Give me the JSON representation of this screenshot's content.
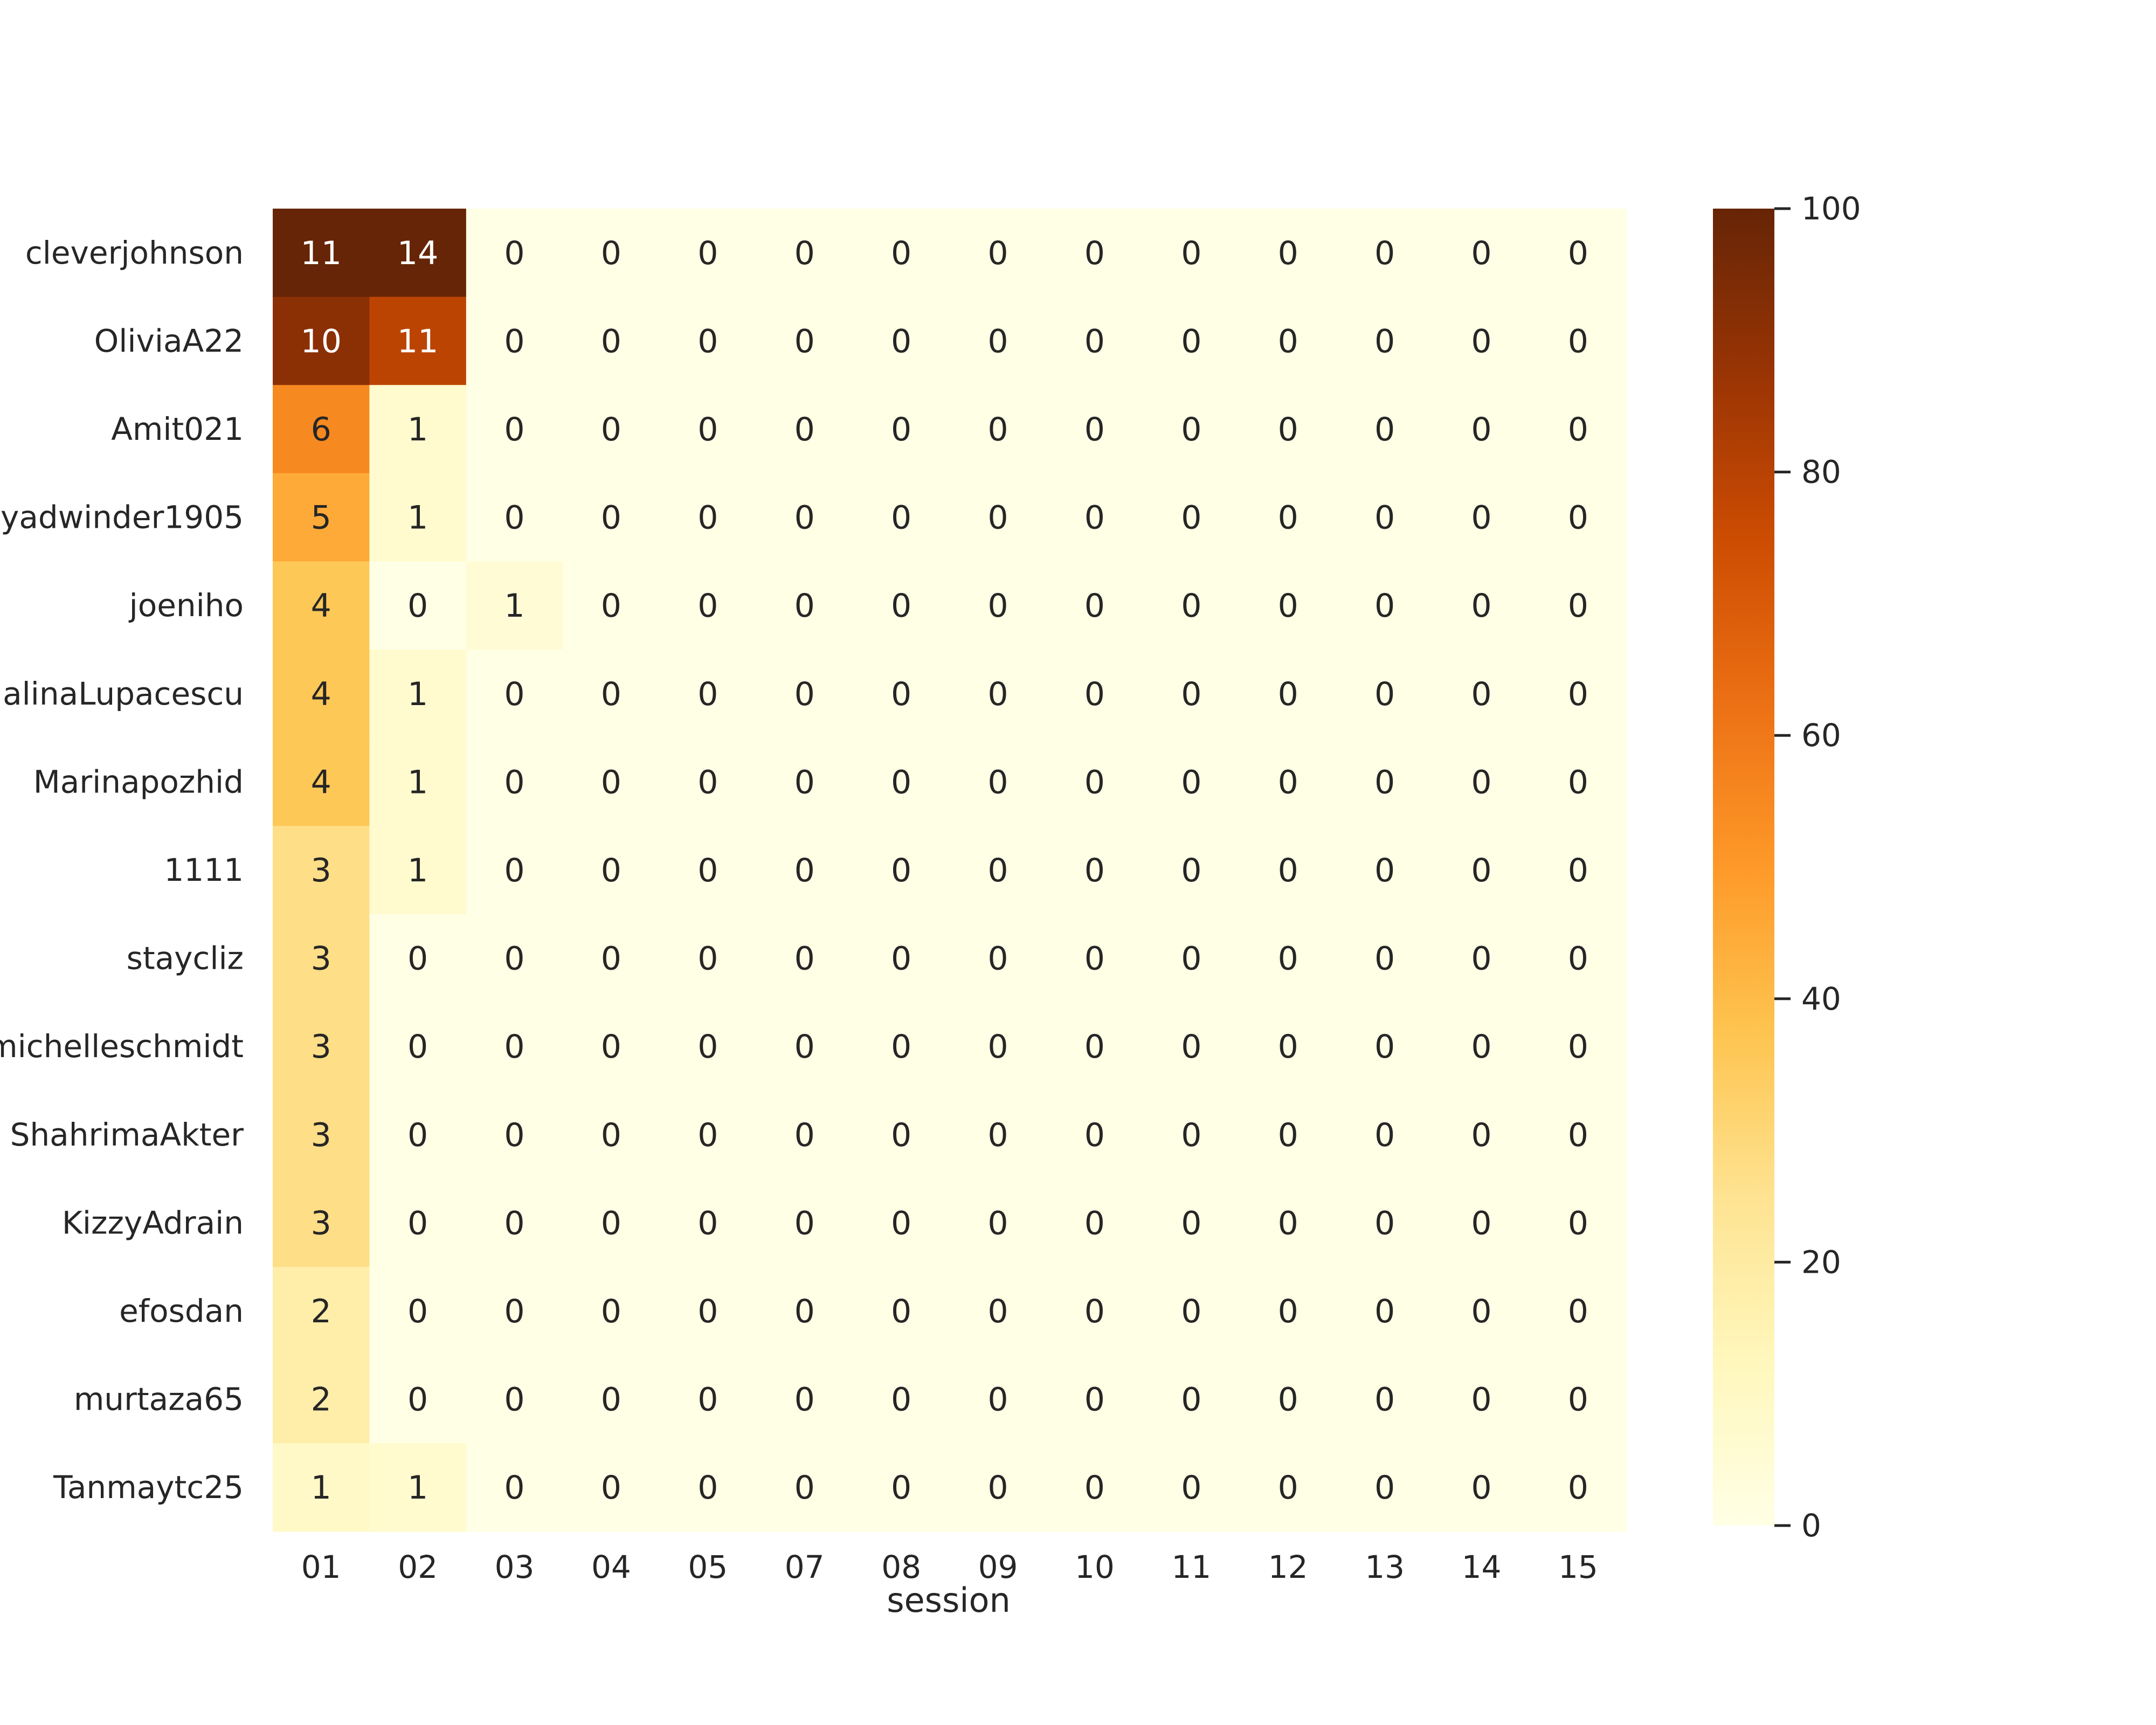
{
  "chart_data": {
    "type": "heatmap",
    "title": "",
    "xlabel": "session",
    "ylabel": "",
    "x": [
      "01",
      "02",
      "03",
      "04",
      "05",
      "07",
      "08",
      "09",
      "10",
      "11",
      "12",
      "13",
      "14",
      "15"
    ],
    "y": [
      "cleverjohnson",
      "OliviaA22",
      "Amit021",
      "yadwinder1905",
      "joeniho",
      "MagdalinaLupacescu",
      "Marinapozhid",
      "1111",
      "staycliz",
      "michelleschmidt",
      "ShahrimaAkter",
      "KizzyAdrain",
      "efosdan",
      "murtaza65",
      "Tanmaytc25"
    ],
    "annotations": [
      [
        11,
        14,
        0,
        0,
        0,
        0,
        0,
        0,
        0,
        0,
        0,
        0,
        0,
        0
      ],
      [
        10,
        11,
        0,
        0,
        0,
        0,
        0,
        0,
        0,
        0,
        0,
        0,
        0,
        0
      ],
      [
        6,
        1,
        0,
        0,
        0,
        0,
        0,
        0,
        0,
        0,
        0,
        0,
        0,
        0
      ],
      [
        5,
        1,
        0,
        0,
        0,
        0,
        0,
        0,
        0,
        0,
        0,
        0,
        0,
        0
      ],
      [
        4,
        0,
        1,
        0,
        0,
        0,
        0,
        0,
        0,
        0,
        0,
        0,
        0,
        0
      ],
      [
        4,
        1,
        0,
        0,
        0,
        0,
        0,
        0,
        0,
        0,
        0,
        0,
        0,
        0
      ],
      [
        4,
        1,
        0,
        0,
        0,
        0,
        0,
        0,
        0,
        0,
        0,
        0,
        0,
        0
      ],
      [
        3,
        1,
        0,
        0,
        0,
        0,
        0,
        0,
        0,
        0,
        0,
        0,
        0,
        0
      ],
      [
        3,
        0,
        0,
        0,
        0,
        0,
        0,
        0,
        0,
        0,
        0,
        0,
        0,
        0
      ],
      [
        3,
        0,
        0,
        0,
        0,
        0,
        0,
        0,
        0,
        0,
        0,
        0,
        0,
        0
      ],
      [
        3,
        0,
        0,
        0,
        0,
        0,
        0,
        0,
        0,
        0,
        0,
        0,
        0,
        0
      ],
      [
        3,
        0,
        0,
        0,
        0,
        0,
        0,
        0,
        0,
        0,
        0,
        0,
        0,
        0
      ],
      [
        2,
        0,
        0,
        0,
        0,
        0,
        0,
        0,
        0,
        0,
        0,
        0,
        0,
        0
      ],
      [
        2,
        0,
        0,
        0,
        0,
        0,
        0,
        0,
        0,
        0,
        0,
        0,
        0,
        0
      ],
      [
        1,
        1,
        0,
        0,
        0,
        0,
        0,
        0,
        0,
        0,
        0,
        0,
        0,
        0
      ]
    ],
    "color_values": [
      [
        100,
        100,
        0,
        0,
        0,
        0,
        0,
        0,
        0,
        0,
        0,
        0,
        0,
        0
      ],
      [
        91,
        79,
        0,
        0,
        0,
        0,
        0,
        0,
        0,
        0,
        0,
        0,
        0,
        0
      ],
      [
        55,
        7,
        0,
        0,
        0,
        0,
        0,
        0,
        0,
        0,
        0,
        0,
        0,
        0
      ],
      [
        45,
        7,
        0,
        0,
        0,
        0,
        0,
        0,
        0,
        0,
        0,
        0,
        0,
        0
      ],
      [
        36,
        0,
        5,
        0,
        0,
        0,
        0,
        0,
        0,
        0,
        0,
        0,
        0,
        0
      ],
      [
        36,
        7,
        0,
        0,
        0,
        0,
        0,
        0,
        0,
        0,
        0,
        0,
        0,
        0
      ],
      [
        36,
        7,
        0,
        0,
        0,
        0,
        0,
        0,
        0,
        0,
        0,
        0,
        0,
        0
      ],
      [
        27,
        7,
        0,
        0,
        0,
        0,
        0,
        0,
        0,
        0,
        0,
        0,
        0,
        0
      ],
      [
        27,
        0,
        0,
        0,
        0,
        0,
        0,
        0,
        0,
        0,
        0,
        0,
        0,
        0
      ],
      [
        27,
        0,
        0,
        0,
        0,
        0,
        0,
        0,
        0,
        0,
        0,
        0,
        0,
        0
      ],
      [
        27,
        0,
        0,
        0,
        0,
        0,
        0,
        0,
        0,
        0,
        0,
        0,
        0,
        0
      ],
      [
        27,
        0,
        0,
        0,
        0,
        0,
        0,
        0,
        0,
        0,
        0,
        0,
        0,
        0
      ],
      [
        18,
        0,
        0,
        0,
        0,
        0,
        0,
        0,
        0,
        0,
        0,
        0,
        0,
        0
      ],
      [
        18,
        0,
        0,
        0,
        0,
        0,
        0,
        0,
        0,
        0,
        0,
        0,
        0,
        0
      ],
      [
        9,
        7,
        0,
        0,
        0,
        0,
        0,
        0,
        0,
        0,
        0,
        0,
        0,
        0
      ]
    ],
    "colorbar": {
      "range": [
        0,
        100
      ],
      "ticks": [
        0,
        20,
        40,
        60,
        80,
        100
      ],
      "colormap": "YlOrBr",
      "stops": [
        "#ffffe5",
        "#fff7bc",
        "#fee391",
        "#fec44f",
        "#fe9929",
        "#ec7014",
        "#cc4c02",
        "#993404",
        "#662506"
      ]
    },
    "annotation_text_colors": {
      "light": "#ffffff",
      "dark": "#262626"
    },
    "grid": false,
    "legend": "colorbar-right"
  }
}
